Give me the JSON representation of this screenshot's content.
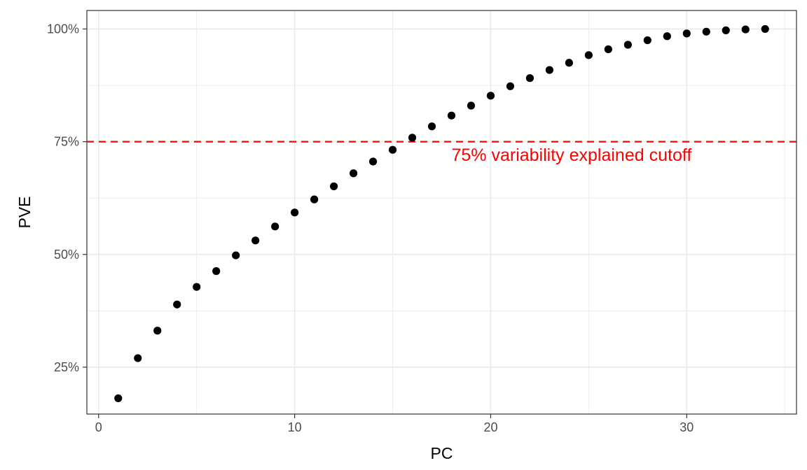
{
  "chart_data": {
    "type": "scatter",
    "xlabel": "PC",
    "ylabel": "PVE",
    "xlim": [
      -0.6,
      35.6
    ],
    "ylim": [
      0.146,
      1.041
    ],
    "grid": true,
    "x_ticks": [
      0,
      10,
      20,
      30
    ],
    "x_tick_labels": [
      "0",
      "10",
      "20",
      "30"
    ],
    "y_ticks": [
      0.25,
      0.5,
      0.75,
      1.0
    ],
    "y_tick_labels": [
      "25%",
      "50%",
      "75%",
      "100%"
    ],
    "series": [
      {
        "x": [
          1,
          2,
          3,
          4,
          5,
          6,
          7,
          8,
          9,
          10,
          11,
          12,
          13,
          14,
          15,
          16,
          17,
          18,
          19,
          20,
          21,
          22,
          23,
          24,
          25,
          26,
          27,
          28,
          29,
          30,
          31,
          32,
          33,
          34
        ],
        "y": [
          0.181,
          0.27,
          0.331,
          0.389,
          0.428,
          0.463,
          0.498,
          0.531,
          0.562,
          0.593,
          0.622,
          0.651,
          0.68,
          0.706,
          0.732,
          0.759,
          0.784,
          0.808,
          0.83,
          0.852,
          0.873,
          0.891,
          0.909,
          0.925,
          0.942,
          0.955,
          0.965,
          0.975,
          0.984,
          0.99,
          0.994,
          0.997,
          0.999,
          1.0
        ]
      }
    ],
    "reference_line": {
      "y": 0.75,
      "style": "dashed",
      "color": "#ff0000",
      "label": "75% variability explained cutoff",
      "label_x": 18,
      "label_y": 0.718
    },
    "colors": {
      "points": "#000000",
      "grid": "#ebebeb",
      "panel_border": "#333333"
    }
  }
}
